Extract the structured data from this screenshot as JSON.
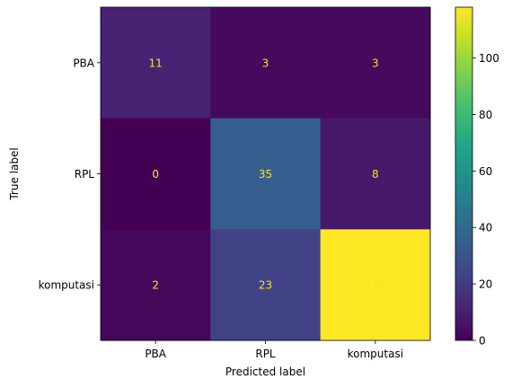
{
  "chart_data": {
    "type": "heatmap",
    "title": "",
    "xlabel": "Predicted label",
    "ylabel": "True label",
    "x_categories": [
      "PBA",
      "RPL",
      "komputasi"
    ],
    "y_categories": [
      "PBA",
      "RPL",
      "komputasi"
    ],
    "values": [
      [
        11,
        3,
        3
      ],
      [
        0,
        35,
        8
      ],
      [
        2,
        23,
        118
      ]
    ],
    "colormap": "viridis",
    "colorbar": {
      "range": [
        0,
        118
      ],
      "ticks": [
        0,
        20,
        40,
        60,
        80,
        100
      ]
    },
    "annotation_color": "#f5e61c",
    "grid": false
  }
}
